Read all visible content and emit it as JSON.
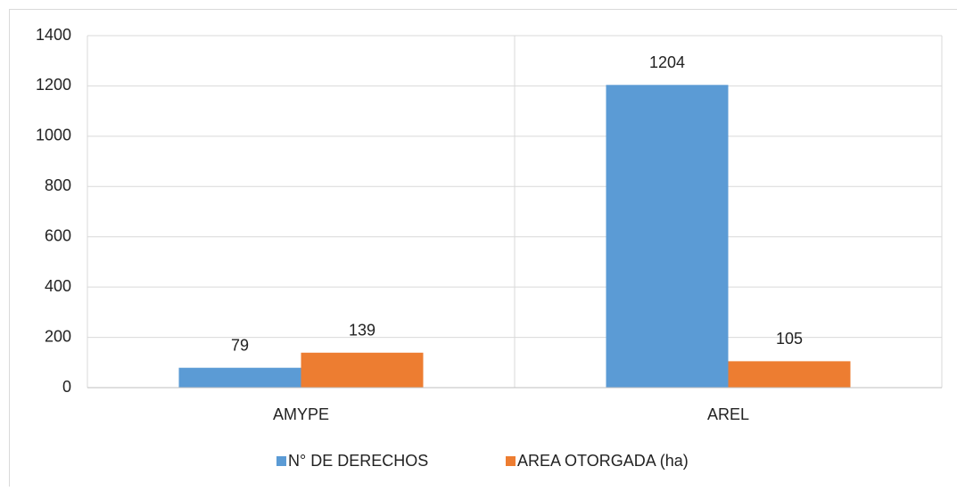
{
  "chart_data": {
    "type": "bar",
    "categories": [
      "AMYPE",
      "AREL"
    ],
    "series": [
      {
        "name": "N° DE DERECHOS",
        "color": "#5b9bd5",
        "values": [
          79,
          1204
        ]
      },
      {
        "name": "AREA OTORGADA (ha)",
        "color": "#ed7d31",
        "values": [
          139,
          105
        ]
      }
    ],
    "ylim": [
      0,
      1400
    ],
    "yticks": [
      0,
      200,
      400,
      600,
      800,
      1000,
      1200,
      1400
    ],
    "grid": true,
    "legend": "bottom"
  }
}
